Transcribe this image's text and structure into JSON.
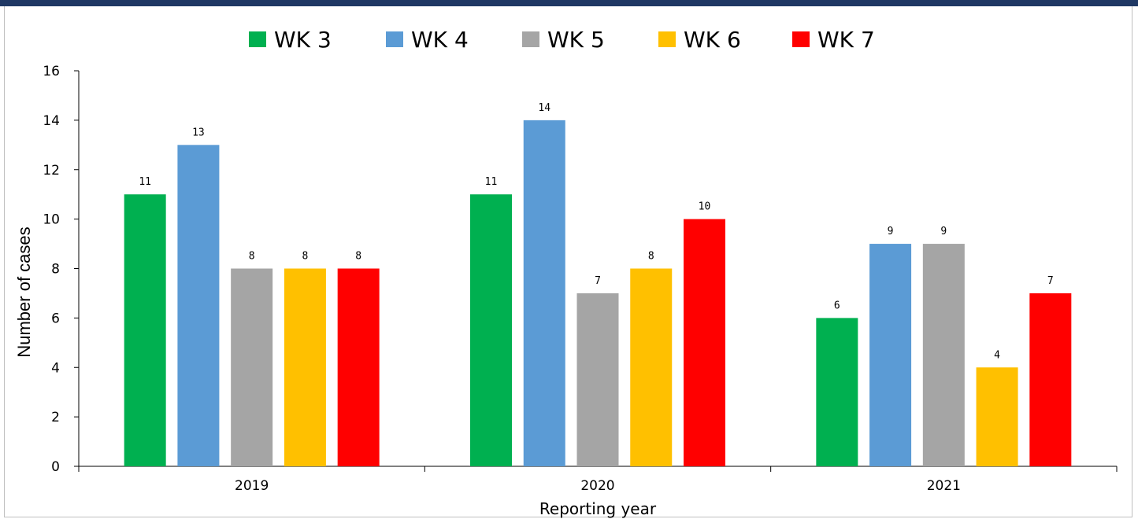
{
  "chart_data": {
    "type": "bar",
    "categories": [
      "2019",
      "2020",
      "2021"
    ],
    "series": [
      {
        "name": "WK 3",
        "color": "#00b050",
        "values": [
          11,
          11,
          6
        ]
      },
      {
        "name": "WK 4",
        "color": "#5b9bd5",
        "values": [
          13,
          14,
          9
        ]
      },
      {
        "name": "WK 5",
        "color": "#a5a5a5",
        "values": [
          8,
          7,
          9
        ]
      },
      {
        "name": "WK 6",
        "color": "#ffc000",
        "values": [
          8,
          8,
          4
        ]
      },
      {
        "name": "WK 7",
        "color": "#ff0000",
        "values": [
          8,
          10,
          7
        ]
      }
    ],
    "xlabel": "Reporting year",
    "ylabel": "Number of cases",
    "ylim": [
      0,
      16
    ],
    "yticks": [
      0,
      2,
      4,
      6,
      8,
      10,
      12,
      14,
      16
    ],
    "legend_position": "top",
    "grid": false,
    "data_labels": true
  },
  "colors": {
    "header_band": "#1f3864",
    "frame_border": "#bfbfbf"
  }
}
